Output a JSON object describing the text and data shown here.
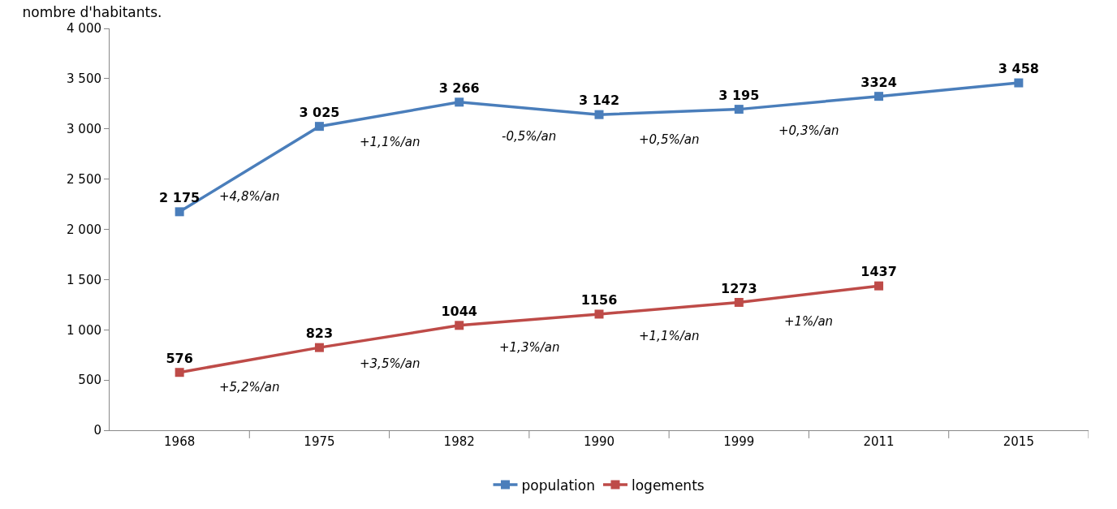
{
  "chart_data": {
    "type": "line",
    "title": "nombre d'habitants.",
    "categories": [
      "1968",
      "1975",
      "1982",
      "1990",
      "1999",
      "2011",
      "2015"
    ],
    "series": [
      {
        "name": "population",
        "color": "#4a7ebb",
        "values": [
          2175,
          3025,
          3266,
          3142,
          3195,
          3324,
          3458
        ],
        "value_labels": [
          "2 175",
          "3 025",
          "3 266",
          "3 142",
          "3 195",
          "3324",
          "3 458"
        ]
      },
      {
        "name": "logements",
        "color": "#be4b48",
        "values": [
          576,
          823,
          1044,
          1156,
          1273,
          1437,
          null
        ],
        "value_labels": [
          "576",
          "823",
          "1044",
          "1156",
          "1273",
          "1437",
          null
        ]
      }
    ],
    "annotations": [
      "+4,8%/an",
      "+1,1%/an",
      "-0,5%/an",
      "+0,5%/an",
      "+0,3%/an",
      null,
      "+5,2%/an",
      "+3,5%/an",
      "+1,3%/an",
      "+1,1%/an",
      "+1%/an"
    ],
    "ylim": [
      0,
      4000
    ],
    "yticks": [
      0,
      {
        "value": 500,
        "label": "500"
      },
      {
        "value": 1000,
        "label": "1 000"
      },
      {
        "value": 1500,
        "label": "1 500"
      },
      {
        "value": 2000,
        "label": "2 000"
      },
      {
        "value": 2500,
        "label": "2 500"
      },
      {
        "value": 3000,
        "label": "3 000"
      },
      {
        "value": 3500,
        "label": "3 500"
      },
      {
        "value": 4000,
        "label": "4 000"
      }
    ],
    "grid": false,
    "legend": "bottom",
    "marker": "square",
    "line_style": "solid"
  }
}
